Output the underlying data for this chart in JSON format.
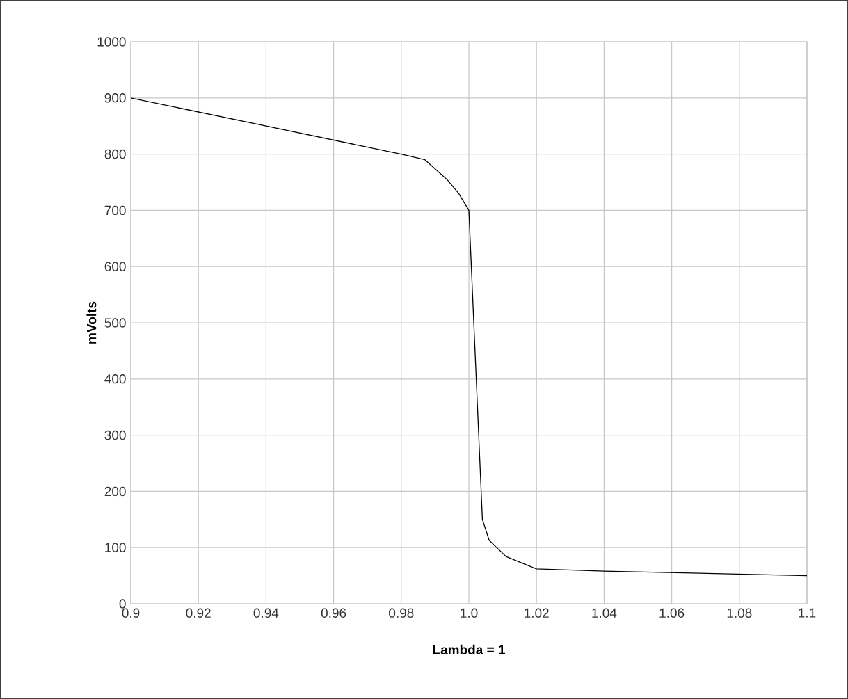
{
  "chart_data": {
    "type": "line",
    "xlabel": "Lambda = 1",
    "ylabel": "mVolts",
    "x": [
      0.9,
      0.94,
      0.98,
      0.987,
      0.9935,
      0.997,
      1.0,
      1.004,
      1.006,
      1.011,
      1.02,
      1.04,
      1.1
    ],
    "values": [
      900,
      850,
      800,
      790,
      755,
      730,
      700,
      150,
      113,
      84,
      62,
      58,
      50
    ],
    "color": "#000000",
    "xlim": [
      0.9,
      1.1
    ],
    "xticks": [
      0.9,
      0.92,
      0.94,
      0.96,
      0.98,
      {
        "value": 1.0,
        "label": "1.0"
      },
      1.02,
      1.04,
      1.06,
      1.08,
      1.1
    ],
    "ylim": [
      0,
      1000
    ],
    "yticks": [
      0,
      100,
      200,
      300,
      400,
      500,
      600,
      700,
      800,
      900,
      1000
    ],
    "grid": true,
    "marker": "none",
    "line_style": "solid"
  }
}
